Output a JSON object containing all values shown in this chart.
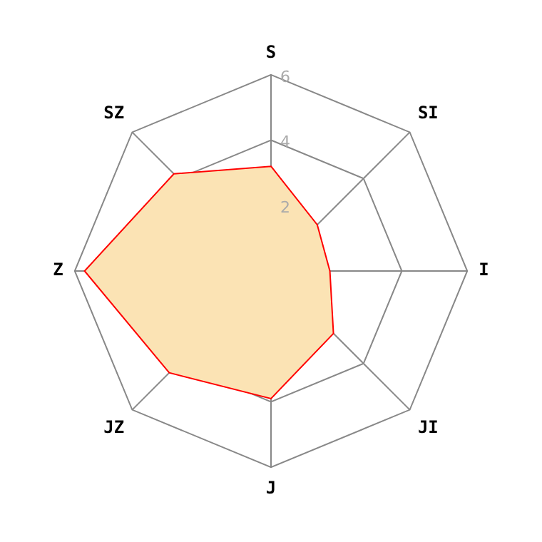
{
  "chart_data": {
    "type": "radar",
    "categories": [
      "S",
      "SI",
      "I",
      "JI",
      "J",
      "JZ",
      "Z",
      "SZ"
    ],
    "series": [
      {
        "color": "#fbe3b4",
        "values": [
          3.2,
          2.0,
          1.8,
          2.7,
          3.9,
          4.4,
          5.7,
          4.2
        ]
      }
    ],
    "ylim": [
      0,
      6
    ],
    "yticks": [
      2,
      4,
      6
    ],
    "grid": true,
    "legend": false,
    "marker": "none"
  }
}
